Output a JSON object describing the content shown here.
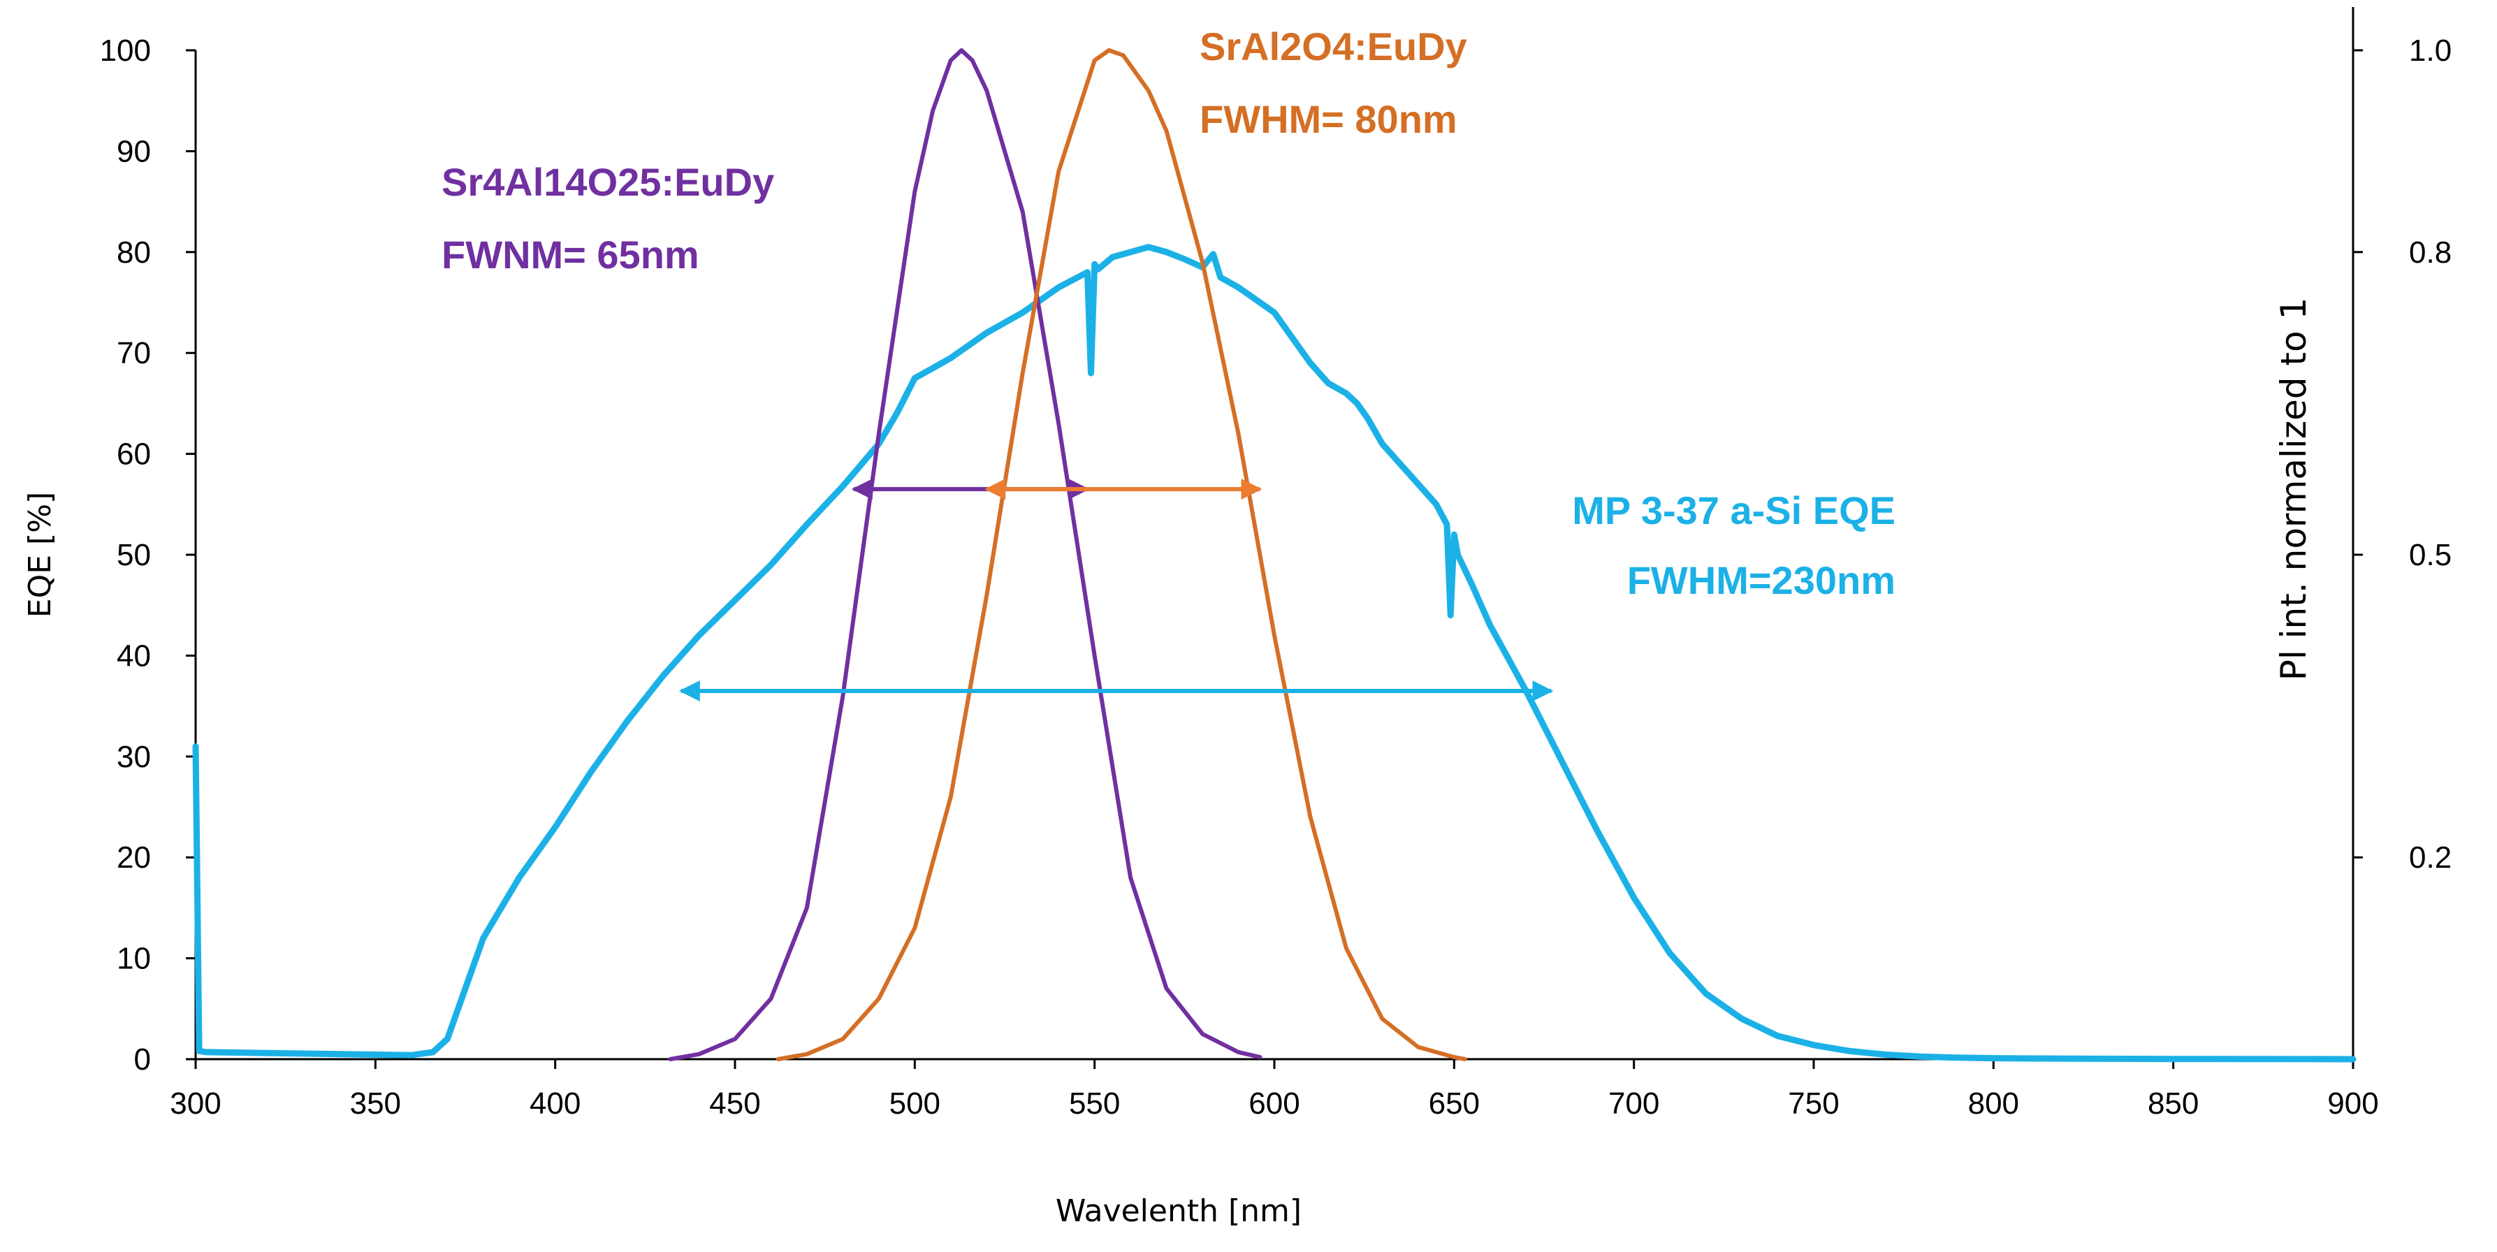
{
  "chart_data": {
    "type": "line",
    "title": "",
    "xlabel": "Wavelenth [nm]",
    "ylabel": "EQE [%]",
    "y2label": "Pl int. normalized to 1",
    "xlim": [
      300,
      900
    ],
    "ylim": [
      0,
      100
    ],
    "y2lim": [
      0,
      1
    ],
    "grid": false,
    "x_ticks": [
      300,
      350,
      400,
      450,
      500,
      550,
      600,
      650,
      700,
      750,
      800,
      850,
      900
    ],
    "y_ticks": [
      0,
      10,
      20,
      30,
      40,
      50,
      60,
      70,
      80,
      90,
      100
    ],
    "y2_ticks": [
      {
        "label": "0.2",
        "value": 0.2
      },
      {
        "label": "0.5",
        "value": 0.5
      },
      {
        "label": "0.8",
        "value": 0.8
      },
      {
        "label": "1.0",
        "value": 1.0
      }
    ],
    "series": [
      {
        "name": "MP 3-37 a-Si EQE",
        "axis": "left",
        "color": "#1CB1E6",
        "x": [
          300,
          301,
          303,
          320,
          340,
          360,
          366,
          370,
          375,
          380,
          390,
          400,
          410,
          420,
          430,
          440,
          450,
          460,
          470,
          480,
          490,
          495,
          500,
          505,
          510,
          520,
          530,
          540,
          548,
          549,
          550,
          551,
          555,
          560,
          565,
          570,
          575,
          580,
          583,
          585,
          590,
          600,
          605,
          610,
          615,
          620,
          623,
          626,
          630,
          635,
          640,
          645,
          648,
          649,
          650,
          651,
          655,
          660,
          670,
          680,
          690,
          700,
          710,
          720,
          730,
          740,
          750,
          760,
          770,
          780,
          790,
          800,
          820,
          850,
          900
        ],
        "values": [
          31,
          0.8,
          0.7,
          0.6,
          0.5,
          0.4,
          0.7,
          2,
          7,
          12,
          18,
          23,
          28.5,
          33.5,
          38,
          42,
          45.5,
          49,
          53,
          56.8,
          61,
          64,
          67.5,
          68.5,
          69.5,
          72,
          74,
          76.5,
          78,
          68,
          78.8,
          78.3,
          79.5,
          80,
          80.5,
          80,
          79.3,
          78.5,
          79.8,
          77.5,
          76.5,
          74,
          71.5,
          69,
          67,
          66,
          65,
          63.5,
          61,
          59,
          57,
          55,
          53,
          44,
          52,
          50,
          47,
          43,
          36.5,
          29.5,
          22.5,
          16,
          10.5,
          6.5,
          4,
          2.3,
          1.4,
          0.8,
          0.45,
          0.25,
          0.15,
          0.1,
          0.05,
          0.02,
          0
        ]
      },
      {
        "name": "Sr4Al14O25:EuDy",
        "axis": "right",
        "color": "#7030A0",
        "x": [
          432,
          440,
          450,
          460,
          470,
          480,
          490,
          500,
          505,
          510,
          513,
          516,
          520,
          530,
          540,
          550,
          560,
          570,
          580,
          590,
          596
        ],
        "values": [
          0,
          0.005,
          0.02,
          0.06,
          0.15,
          0.36,
          0.62,
          0.86,
          0.94,
          0.99,
          1.0,
          0.99,
          0.96,
          0.84,
          0.63,
          0.4,
          0.18,
          0.07,
          0.025,
          0.007,
          0.002
        ]
      },
      {
        "name": "SrAl2O4:EuDy",
        "axis": "right",
        "color": "#D46F25",
        "x": [
          462,
          470,
          480,
          490,
          500,
          510,
          520,
          530,
          540,
          550,
          554,
          558,
          565,
          570,
          580,
          590,
          600,
          610,
          620,
          630,
          640,
          650,
          653
        ],
        "values": [
          0,
          0.005,
          0.02,
          0.06,
          0.13,
          0.26,
          0.46,
          0.68,
          0.88,
          0.99,
          1.0,
          0.995,
          0.96,
          0.92,
          0.79,
          0.62,
          0.42,
          0.24,
          0.11,
          0.04,
          0.012,
          0.002,
          0
        ]
      }
    ],
    "annotations": [
      {
        "name": "purple-title",
        "text": "Sr4Al14O25:EuDy",
        "color": "#7030A0"
      },
      {
        "name": "purple-fwhm",
        "text": "FWNM= 65nm",
        "color": "#7030A0"
      },
      {
        "name": "orange-title",
        "text": "SrAl2O4:EuDy",
        "color": "#D46F25"
      },
      {
        "name": "orange-fwhm",
        "text": "FWHM= 80nm",
        "color": "#D46F25"
      },
      {
        "name": "blue-title",
        "text": "MP 3-37 a-Si EQE",
        "color": "#1CB1E6"
      },
      {
        "name": "blue-fwhm",
        "text": "FWHM=230nm",
        "color": "#1CB1E6"
      }
    ],
    "fwhm_arrows": [
      {
        "name": "purple-fwhm-arrow",
        "color": "#7030A0",
        "x_start": 483,
        "x_end": 548,
        "y": 56.5
      },
      {
        "name": "orange-fwhm-arrow",
        "color": "#ED7D31",
        "x_start": 520,
        "x_end": 596,
        "y": 56.5
      },
      {
        "name": "blue-fwhm-arrow",
        "color": "#1CB1E6",
        "x_start": 435,
        "x_end": 677,
        "y": 36.5
      }
    ]
  }
}
